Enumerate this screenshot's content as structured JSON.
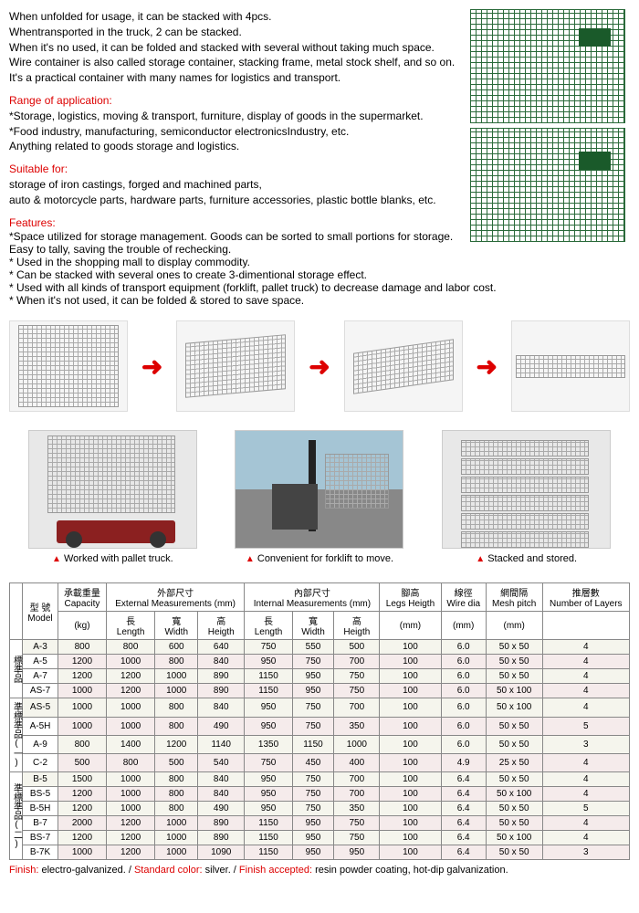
{
  "intro": [
    "When unfolded for usage, it can be stacked with 4pcs.",
    "Whentransported in the truck, 2 can be stacked.",
    "When it's no used, it can be folded and stacked with several without taking much space.",
    "Wire container is also called storage container, stacking frame, metal stock shelf, and so on.",
    "It's a practical container with many names for logistics and transport."
  ],
  "range_header": "Range of application:",
  "range_lines": [
    "*Storage, logistics, moving & transport, furniture, display of goods in the supermarket.",
    "*Food industry, manufacturing, semiconductor electronicsIndustry, etc.",
    "  Anything related to goods storage and logistics."
  ],
  "suitable_header": "Suitable for:",
  "suitable_lines": [
    "storage of iron castings, forged and machined parts,",
    "auto & motorcycle parts, hardware parts, furniture accessories, plastic bottle blanks, etc."
  ],
  "features_header": "Features:",
  "features_lines": [
    "*Space utilized for storage management. Goods can be sorted to small portions for storage.",
    "  Easy to tally, saving the trouble of rechecking.",
    "* Used in the shopping mall to display commodity.",
    "* Can be stacked with several ones to create 3-dimentional storage effect.",
    "* Used with all kinds of transport equipment (forklift, pallet truck) to decrease damage and labor cost.",
    "* When it's not used, it can be folded & stored to save space."
  ],
  "usage_captions": [
    "Worked with pallet truck.",
    "Convenient for forklift to move.",
    "Stacked and stored."
  ],
  "table": {
    "group_headers": {
      "model_cn": "型 號",
      "model_en": "Model",
      "capacity_cn": "承載重量",
      "capacity_en": "Capacity",
      "capacity_unit": "(kg)",
      "external_cn": "外部尺寸",
      "external_en": "External Measurements (mm)",
      "internal_cn": "內部尺寸",
      "internal_en": "Internal Measurements (mm)",
      "legs_cn": "腳高",
      "legs_en": "Legs Heigth",
      "legs_unit": "(mm)",
      "wire_cn": "線徑",
      "wire_en": "Wire dia",
      "wire_unit": "(mm)",
      "mesh_cn": "網間隔",
      "mesh_en": "Mesh pitch",
      "mesh_unit": "(mm)",
      "layers_cn": "推層數",
      "layers_en": "Number of Layers",
      "length_cn": "長",
      "length_en": "Length",
      "width_cn": "寬",
      "width_en": "Width",
      "height_cn": "高",
      "height_en": "Heigth"
    },
    "side_labels": [
      "標準品",
      "準標準品(一)",
      "準標準品(二)"
    ],
    "groups": [
      {
        "rows": [
          {
            "c": [
              "A-3",
              "800",
              "800",
              "600",
              "640",
              "750",
              "550",
              "500",
              "100",
              "6.0",
              "50 x 50",
              "4"
            ]
          },
          {
            "c": [
              "A-5",
              "1200",
              "1000",
              "800",
              "840",
              "950",
              "750",
              "700",
              "100",
              "6.0",
              "50 x 50",
              "4"
            ]
          },
          {
            "c": [
              "A-7",
              "1200",
              "1200",
              "1000",
              "890",
              "1150",
              "950",
              "750",
              "100",
              "6.0",
              "50 x 50",
              "4"
            ]
          },
          {
            "c": [
              "AS-7",
              "1000",
              "1200",
              "1000",
              "890",
              "1150",
              "950",
              "750",
              "100",
              "6.0",
              "50 x 100",
              "4"
            ]
          }
        ]
      },
      {
        "rows": [
          {
            "c": [
              "AS-5",
              "1000",
              "1000",
              "800",
              "840",
              "950",
              "750",
              "700",
              "100",
              "6.0",
              "50 x 100",
              "4"
            ]
          },
          {
            "c": [
              "A-5H",
              "1000",
              "1000",
              "800",
              "490",
              "950",
              "750",
              "350",
              "100",
              "6.0",
              "50 x 50",
              "5"
            ]
          },
          {
            "c": [
              "A-9",
              "800",
              "1400",
              "1200",
              "1140",
              "1350",
              "1150",
              "1000",
              "100",
              "6.0",
              "50 x 50",
              "3"
            ]
          },
          {
            "c": [
              "C-2",
              "500",
              "800",
              "500",
              "540",
              "750",
              "450",
              "400",
              "100",
              "4.9",
              "25 x 50",
              "4"
            ]
          }
        ]
      },
      {
        "rows": [
          {
            "c": [
              "B-5",
              "1500",
              "1000",
              "800",
              "840",
              "950",
              "750",
              "700",
              "100",
              "6.4",
              "50 x 50",
              "4"
            ]
          },
          {
            "c": [
              "BS-5",
              "1200",
              "1000",
              "800",
              "840",
              "950",
              "750",
              "700",
              "100",
              "6.4",
              "50 x 100",
              "4"
            ]
          },
          {
            "c": [
              "B-5H",
              "1200",
              "1000",
              "800",
              "490",
              "950",
              "750",
              "350",
              "100",
              "6.4",
              "50 x 50",
              "5"
            ]
          },
          {
            "c": [
              "B-7",
              "2000",
              "1200",
              "1000",
              "890",
              "1150",
              "950",
              "750",
              "100",
              "6.4",
              "50 x 50",
              "4"
            ]
          },
          {
            "c": [
              "BS-7",
              "1200",
              "1200",
              "1000",
              "890",
              "1150",
              "950",
              "750",
              "100",
              "6.4",
              "50 x 100",
              "4"
            ]
          },
          {
            "c": [
              "B-7K",
              "1000",
              "1200",
              "1000",
              "1090",
              "1150",
              "950",
              "950",
              "100",
              "6.4",
              "50 x 50",
              "3"
            ]
          }
        ]
      }
    ]
  },
  "footer": {
    "finish_label": "Finish:",
    "finish_val": " electro-galvanized. / ",
    "std_color_label": "Standard color:",
    "std_color_val": " silver. / ",
    "accepted_label": "Finish accepted:",
    "accepted_val": " resin powder coating, hot-dip galvanization."
  }
}
